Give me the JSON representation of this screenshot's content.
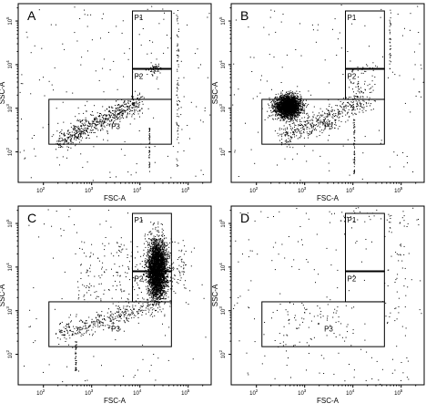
{
  "chart_data": [
    {
      "type": "scatter",
      "panel_label": "A",
      "xlabel": "FSC-A",
      "ylabel": "SSC-A",
      "xscale": "log",
      "yscale": "log",
      "xlim": [
        30,
        300000
      ],
      "ylim": [
        20,
        250000
      ],
      "xticks": [
        {
          "base": "10",
          "exp": "2"
        },
        {
          "base": "10",
          "exp": "3"
        },
        {
          "base": "10",
          "exp": "4"
        },
        {
          "base": "10",
          "exp": "5"
        }
      ],
      "yticks": [
        {
          "base": "10",
          "exp": "2"
        },
        {
          "base": "10",
          "exp": "3"
        },
        {
          "base": "10",
          "exp": "4"
        },
        {
          "base": "10",
          "exp": "5"
        }
      ],
      "gates": [
        {
          "name": "P1",
          "x_range": [
            7000,
            45000
          ],
          "y_range": [
            8000,
            170000
          ]
        },
        {
          "name": "P2",
          "x_range": [
            7000,
            45000
          ],
          "y_range": [
            1600,
            8000
          ]
        },
        {
          "name": "P3",
          "x_range": [
            130,
            45000
          ],
          "y_range": [
            150,
            1600
          ]
        }
      ],
      "clusters": [
        {
          "count": 650,
          "x_log_range": [
            2.3,
            4.0
          ],
          "y_log_range": [
            2.25,
            3.15
          ],
          "diagonal": true,
          "spread": 0.12
        },
        {
          "count": 60,
          "x_log": 4.3,
          "y_log": 3.9,
          "sx": 0.07,
          "sy": 0.07
        },
        {
          "count": 70,
          "x_log_range": [
            4.75,
            4.8
          ],
          "y_log_range": [
            1.5,
            5.3
          ]
        },
        {
          "count": 45,
          "x_log_range": [
            4.18,
            4.2
          ],
          "y_log_range": [
            1.5,
            2.6
          ]
        },
        {
          "count": 180,
          "uniform": true
        }
      ]
    },
    {
      "type": "scatter",
      "panel_label": "B",
      "xlabel": "FSC-A",
      "ylabel": "SSC-A",
      "xscale": "log",
      "yscale": "log",
      "xlim": [
        30,
        300000
      ],
      "ylim": [
        20,
        250000
      ],
      "xticks": [
        {
          "base": "10",
          "exp": "2"
        },
        {
          "base": "10",
          "exp": "3"
        },
        {
          "base": "10",
          "exp": "4"
        },
        {
          "base": "10",
          "exp": "5"
        }
      ],
      "yticks": [
        {
          "base": "10",
          "exp": "2"
        },
        {
          "base": "10",
          "exp": "3"
        },
        {
          "base": "10",
          "exp": "4"
        },
        {
          "base": "10",
          "exp": "5"
        }
      ],
      "gates": [
        {
          "name": "P1",
          "x_range": [
            7000,
            45000
          ],
          "y_range": [
            8000,
            170000
          ]
        },
        {
          "name": "P2",
          "x_range": [
            7000,
            45000
          ],
          "y_range": [
            1600,
            8000
          ]
        },
        {
          "name": "P3",
          "x_range": [
            130,
            45000
          ],
          "y_range": [
            150,
            1600
          ]
        }
      ],
      "clusters": [
        {
          "count": 2600,
          "x_log": 2.65,
          "y_log": 3.05,
          "sx": 0.13,
          "sy": 0.12
        },
        {
          "count": 450,
          "x_log_range": [
            2.5,
            4.3
          ],
          "y_log_range": [
            2.35,
            3.2
          ],
          "diagonal": true,
          "spread": 0.14
        },
        {
          "count": 80,
          "x_log_range": [
            3.9,
            4.5
          ],
          "y_log_range": [
            3.1,
            4.0
          ]
        },
        {
          "count": 55,
          "x_log_range": [
            4.01,
            4.03
          ],
          "y_log_range": [
            1.5,
            2.8
          ]
        },
        {
          "count": 35,
          "x_log_range": [
            4.75,
            4.78
          ],
          "y_log_range": [
            3.9,
            5.2
          ]
        },
        {
          "count": 150,
          "uniform": true
        }
      ]
    },
    {
      "type": "scatter",
      "panel_label": "C",
      "xlabel": "FSC-A",
      "ylabel": "SSC-A",
      "xscale": "log",
      "yscale": "log",
      "xlim": [
        30,
        300000
      ],
      "ylim": [
        20,
        250000
      ],
      "xticks": [
        {
          "base": "10",
          "exp": "2"
        },
        {
          "base": "10",
          "exp": "3"
        },
        {
          "base": "10",
          "exp": "4"
        },
        {
          "base": "10",
          "exp": "5"
        }
      ],
      "yticks": [
        {
          "base": "10",
          "exp": "2"
        },
        {
          "base": "10",
          "exp": "3"
        },
        {
          "base": "10",
          "exp": "4"
        },
        {
          "base": "10",
          "exp": "5"
        }
      ],
      "gates": [
        {
          "name": "P1",
          "x_range": [
            7000,
            45000
          ],
          "y_range": [
            8000,
            170000
          ]
        },
        {
          "name": "P2",
          "x_range": [
            7000,
            45000
          ],
          "y_range": [
            1600,
            8000
          ]
        },
        {
          "name": "P3",
          "x_range": [
            130,
            45000
          ],
          "y_range": [
            150,
            1600
          ]
        }
      ],
      "clusters": [
        {
          "count": 3200,
          "x_log": 4.35,
          "y_log": 3.95,
          "sx": 0.1,
          "sy": 0.33
        },
        {
          "count": 350,
          "x_log_range": [
            2.3,
            4.2
          ],
          "y_log_range": [
            2.5,
            3.1
          ],
          "diagonal": true,
          "spread": 0.12
        },
        {
          "count": 140,
          "x_log_range": [
            2.7,
            4.0
          ],
          "y_log_range": [
            3.2,
            4.6
          ]
        },
        {
          "count": 40,
          "x_log_range": [
            2.65,
            2.68
          ],
          "y_log_range": [
            1.6,
            2.3
          ]
        },
        {
          "count": 60,
          "x_log_range": [
            4.55,
            4.95
          ],
          "y_log_range": [
            3.5,
            4.4
          ]
        },
        {
          "count": 120,
          "uniform": true
        }
      ]
    },
    {
      "type": "scatter",
      "panel_label": "D",
      "xlabel": "FSC-A",
      "ylabel": "SSC-A",
      "xscale": "log",
      "yscale": "log",
      "xlim": [
        30,
        300000
      ],
      "ylim": [
        20,
        250000
      ],
      "xticks": [
        {
          "base": "10",
          "exp": "2"
        },
        {
          "base": "10",
          "exp": "3"
        },
        {
          "base": "10",
          "exp": "4"
        },
        {
          "base": "10",
          "exp": "5"
        }
      ],
      "yticks": [
        {
          "base": "10",
          "exp": "2"
        },
        {
          "base": "10",
          "exp": "3"
        },
        {
          "base": "10",
          "exp": "4"
        },
        {
          "base": "10",
          "exp": "5"
        }
      ],
      "gates": [
        {
          "name": "P1",
          "x_range": [
            7000,
            45000
          ],
          "y_range": [
            8000,
            170000
          ]
        },
        {
          "name": "P2",
          "x_range": [
            7000,
            45000
          ],
          "y_range": [
            1600,
            8000
          ]
        },
        {
          "name": "P3",
          "x_range": [
            130,
            45000
          ],
          "y_range": [
            150,
            1600
          ]
        }
      ],
      "clusters": [
        {
          "count": 70,
          "x_log_range": [
            2.3,
            4.0
          ],
          "y_log_range": [
            2.2,
            3.2
          ]
        },
        {
          "count": 40,
          "x_log_range": [
            4.7,
            5.1
          ],
          "y_log_range": [
            2.2,
            5.2
          ]
        },
        {
          "count": 30,
          "x_log_range": [
            3.5,
            5.2
          ],
          "y_log_range": [
            4.9,
            5.3
          ]
        },
        {
          "count": 180,
          "uniform": true
        }
      ]
    }
  ]
}
